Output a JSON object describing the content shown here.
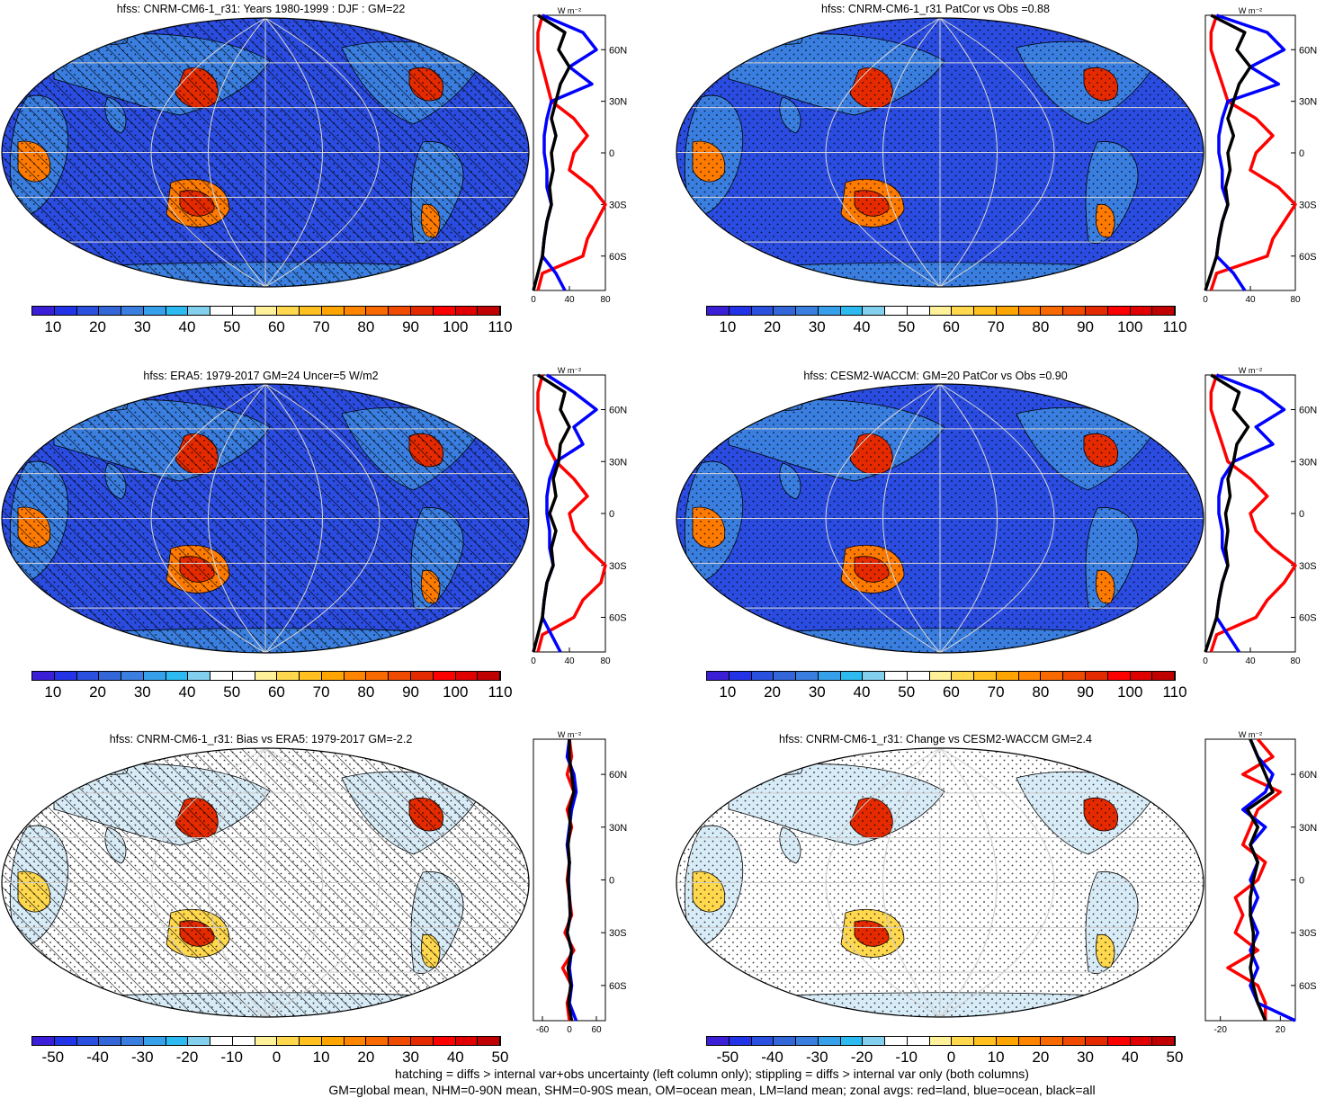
{
  "panels": [
    {
      "title": "hfss: CNRM-CM6-1_r31: Years 1980-1999 : DJF : GM=22",
      "kind": "abs",
      "hatch": true
    },
    {
      "title": "hfss: CNRM-CM6-1_r31 PatCor vs Obs =0.88",
      "kind": "abs",
      "hatch": false
    },
    {
      "title": "hfss: ERA5: 1979-2017 GM=24 Uncer=5 W/m2",
      "kind": "abs",
      "hatch": true
    },
    {
      "title": "hfss: CESM2-WACCM: GM=20 PatCor vs Obs =0.90",
      "kind": "abs",
      "hatch": false
    },
    {
      "title": "hfss: CNRM-CM6-1_r31: Bias vs ERA5: 1979-2017 GM=-2.2",
      "kind": "diff",
      "hatch": true
    },
    {
      "title": "hfss: CNRM-CM6-1_r31: Change vs CESM2-WACCM GM=2.4",
      "kind": "diff",
      "hatch": false
    }
  ],
  "colorbars": {
    "abs": {
      "labels": [
        "10",
        "20",
        "30",
        "40",
        "50",
        "60",
        "70",
        "80",
        "90",
        "100",
        "110"
      ],
      "colors": [
        "#3a1fd6",
        "#2334e8",
        "#2a50e0",
        "#3366d9",
        "#3a7ee0",
        "#36a0ea",
        "#2cbaf0",
        "#83d0ee",
        "#ffffff",
        "#ffffff",
        "#fff19a",
        "#ffd84d",
        "#ffc020",
        "#ffa500",
        "#ff8500",
        "#f86a00",
        "#ef4a00",
        "#e62a00",
        "#ff0000",
        "#e00000",
        "#c00000"
      ]
    },
    "diff": {
      "labels": [
        "-50",
        "-40",
        "-30",
        "-20",
        "-10",
        "0",
        "10",
        "20",
        "30",
        "40",
        "50"
      ],
      "colors": [
        "#3a1fd6",
        "#2334e8",
        "#2a50e0",
        "#3366d9",
        "#3a7ee0",
        "#36a0ea",
        "#2cbaf0",
        "#83d0ee",
        "#ffffff",
        "#ffffff",
        "#fff19a",
        "#ffd84d",
        "#ffc020",
        "#ffa500",
        "#ff8500",
        "#f86a00",
        "#ef4a00",
        "#e62a00",
        "#ff0000",
        "#e00000",
        "#c00000"
      ]
    }
  },
  "zonal": {
    "unit_label": "W m⁻²",
    "lat_labels": [
      "60N",
      "30N",
      "0",
      "30S",
      "60S"
    ],
    "abs_xlabels": [
      "0",
      "40",
      "80"
    ],
    "bias_xlabels": [
      "-60",
      "0",
      "60"
    ],
    "change_xlabels": [
      "-20",
      "20"
    ],
    "series_colors": {
      "land": "#ff0000",
      "ocean": "#0000ff",
      "all": "#000000"
    }
  },
  "chart_data": [
    {
      "type": "heatmap",
      "title": "hfss: CNRM-CM6-1_r31: Years 1980-1999 : DJF : GM=22",
      "colorbar_labels": [
        "10",
        "20",
        "30",
        "40",
        "50",
        "60",
        "70",
        "80",
        "90",
        "100",
        "110"
      ],
      "zonal_mean": {
        "lat": [
          80,
          70,
          60,
          50,
          40,
          30,
          20,
          10,
          0,
          -10,
          -20,
          -30,
          -40,
          -50,
          -60,
          -70,
          -80
        ],
        "series": [
          {
            "name": "land",
            "values": [
              10,
              5,
              5,
              10,
              15,
              20,
              45,
              60,
              45,
              40,
              65,
              80,
              70,
              60,
              55,
              10,
              5
            ]
          },
          {
            "name": "ocean",
            "values": [
              10,
              55,
              70,
              40,
              65,
              20,
              15,
              12,
              12,
              15,
              15,
              20,
              15,
              12,
              10,
              25,
              35
            ]
          },
          {
            "name": "all",
            "values": [
              5,
              35,
              28,
              40,
              30,
              25,
              20,
              25,
              20,
              22,
              18,
              20,
              15,
              12,
              10,
              5,
              0
            ]
          }
        ]
      }
    },
    {
      "type": "heatmap",
      "title": "hfss: CNRM-CM6-1_r31 PatCor vs Obs =0.88",
      "colorbar_labels": [
        "10",
        "20",
        "30",
        "40",
        "50",
        "60",
        "70",
        "80",
        "90",
        "100",
        "110"
      ],
      "zonal_mean": {
        "lat": [
          80,
          70,
          60,
          50,
          40,
          30,
          20,
          10,
          0,
          -10,
          -20,
          -30,
          -40,
          -50,
          -60,
          -70,
          -80
        ],
        "series": [
          {
            "name": "land",
            "values": [
              10,
              5,
              5,
              10,
              15,
              20,
              45,
              60,
              45,
              40,
              65,
              80,
              70,
              60,
              55,
              10,
              5
            ]
          },
          {
            "name": "ocean",
            "values": [
              10,
              55,
              70,
              40,
              65,
              20,
              15,
              12,
              12,
              15,
              15,
              20,
              15,
              12,
              10,
              25,
              35
            ]
          },
          {
            "name": "all",
            "values": [
              5,
              35,
              28,
              40,
              30,
              25,
              20,
              25,
              20,
              22,
              18,
              20,
              15,
              12,
              10,
              5,
              0
            ]
          }
        ]
      }
    },
    {
      "type": "heatmap",
      "title": "hfss: ERA5: 1979-2017 GM=24 Uncer=5 W/m2",
      "colorbar_labels": [
        "10",
        "20",
        "30",
        "40",
        "50",
        "60",
        "70",
        "80",
        "90",
        "100",
        "110"
      ],
      "zonal_mean": {
        "lat": [
          80,
          70,
          60,
          50,
          40,
          30,
          20,
          10,
          0,
          -10,
          -20,
          -30,
          -40,
          -50,
          -60,
          -70,
          -80
        ],
        "series": [
          {
            "name": "land",
            "values": [
              10,
              5,
              5,
              10,
              15,
              25,
              45,
              60,
              40,
              45,
              60,
              85,
              75,
              55,
              45,
              10,
              5
            ]
          },
          {
            "name": "ocean",
            "values": [
              15,
              45,
              70,
              45,
              55,
              25,
              18,
              15,
              15,
              18,
              18,
              22,
              15,
              12,
              10,
              20,
              30
            ]
          },
          {
            "name": "all",
            "values": [
              5,
              35,
              30,
              40,
              30,
              28,
              22,
              25,
              18,
              25,
              20,
              22,
              15,
              12,
              10,
              5,
              0
            ]
          }
        ]
      }
    },
    {
      "type": "heatmap",
      "title": "hfss: CESM2-WACCM: GM=20 PatCor vs Obs =0.90",
      "colorbar_labels": [
        "10",
        "20",
        "30",
        "40",
        "50",
        "60",
        "70",
        "80",
        "90",
        "100",
        "110"
      ],
      "zonal_mean": {
        "lat": [
          80,
          70,
          60,
          50,
          40,
          30,
          20,
          10,
          0,
          -10,
          -20,
          -30,
          -40,
          -50,
          -60,
          -70,
          -80
        ],
        "series": [
          {
            "name": "land",
            "values": [
              10,
              5,
              5,
              10,
              15,
              20,
              40,
              55,
              40,
              45,
              60,
              85,
              70,
              55,
              45,
              10,
              5
            ]
          },
          {
            "name": "ocean",
            "values": [
              10,
              50,
              70,
              45,
              60,
              25,
              15,
              12,
              12,
              15,
              15,
              20,
              15,
              12,
              10,
              20,
              30
            ]
          },
          {
            "name": "all",
            "values": [
              5,
              30,
              25,
              38,
              28,
              25,
              20,
              22,
              18,
              20,
              18,
              20,
              15,
              12,
              10,
              5,
              0
            ]
          }
        ]
      }
    },
    {
      "type": "heatmap",
      "title": "hfss: CNRM-CM6-1_r31: Bias vs ERA5: 1979-2017 GM=-2.2",
      "colorbar_labels": [
        "-50",
        "-40",
        "-30",
        "-20",
        "-10",
        "0",
        "10",
        "20",
        "30",
        "40",
        "50"
      ],
      "zonal_mean": {
        "lat": [
          80,
          70,
          60,
          50,
          40,
          30,
          20,
          10,
          0,
          -10,
          -20,
          -30,
          -40,
          -50,
          -60,
          -70,
          -80
        ],
        "series": [
          {
            "name": "land",
            "values": [
              0,
              5,
              -5,
              10,
              -5,
              5,
              -5,
              0,
              -5,
              0,
              5,
              -10,
              10,
              -15,
              5,
              -5,
              0
            ]
          },
          {
            "name": "ocean",
            "values": [
              0,
              -5,
              10,
              15,
              5,
              0,
              -5,
              0,
              -2,
              0,
              2,
              -5,
              5,
              0,
              5,
              0,
              15
            ]
          },
          {
            "name": "all",
            "values": [
              0,
              0,
              5,
              10,
              0,
              2,
              -3,
              0,
              -3,
              0,
              2,
              -5,
              5,
              -3,
              3,
              -2,
              5
            ]
          }
        ]
      }
    },
    {
      "type": "heatmap",
      "title": "hfss: CNRM-CM6-1_r31: Change vs CESM2-WACCM GM=2.4",
      "colorbar_labels": [
        "-50",
        "-40",
        "-30",
        "-20",
        "-10",
        "0",
        "10",
        "20",
        "30",
        "40",
        "50"
      ],
      "zonal_mean": {
        "lat": [
          80,
          70,
          60,
          50,
          40,
          30,
          20,
          10,
          0,
          -10,
          -20,
          -30,
          -40,
          -50,
          -60,
          -70,
          -80
        ],
        "series": [
          {
            "name": "land",
            "values": [
              5,
              15,
              -5,
              20,
              5,
              0,
              -5,
              10,
              5,
              -10,
              -5,
              -10,
              5,
              -15,
              5,
              10,
              10
            ]
          },
          {
            "name": "ocean",
            "values": [
              0,
              5,
              15,
              10,
              -5,
              10,
              0,
              5,
              0,
              5,
              0,
              5,
              0,
              5,
              0,
              5,
              30
            ]
          },
          {
            "name": "all",
            "values": [
              0,
              5,
              10,
              15,
              -2,
              5,
              0,
              5,
              2,
              0,
              0,
              2,
              2,
              0,
              2,
              5,
              10
            ]
          }
        ]
      }
    }
  ],
  "footer": {
    "line1": "hatching = diffs > internal var+obs uncertainty (left column only); stippling = diffs > internal var only (both columns)",
    "line2": "GM=global mean, NHM=0-90N mean, SHM=0-90S mean, OM=ocean mean, LM=land mean; zonal avgs: red=land, blue=ocean, black=all"
  }
}
